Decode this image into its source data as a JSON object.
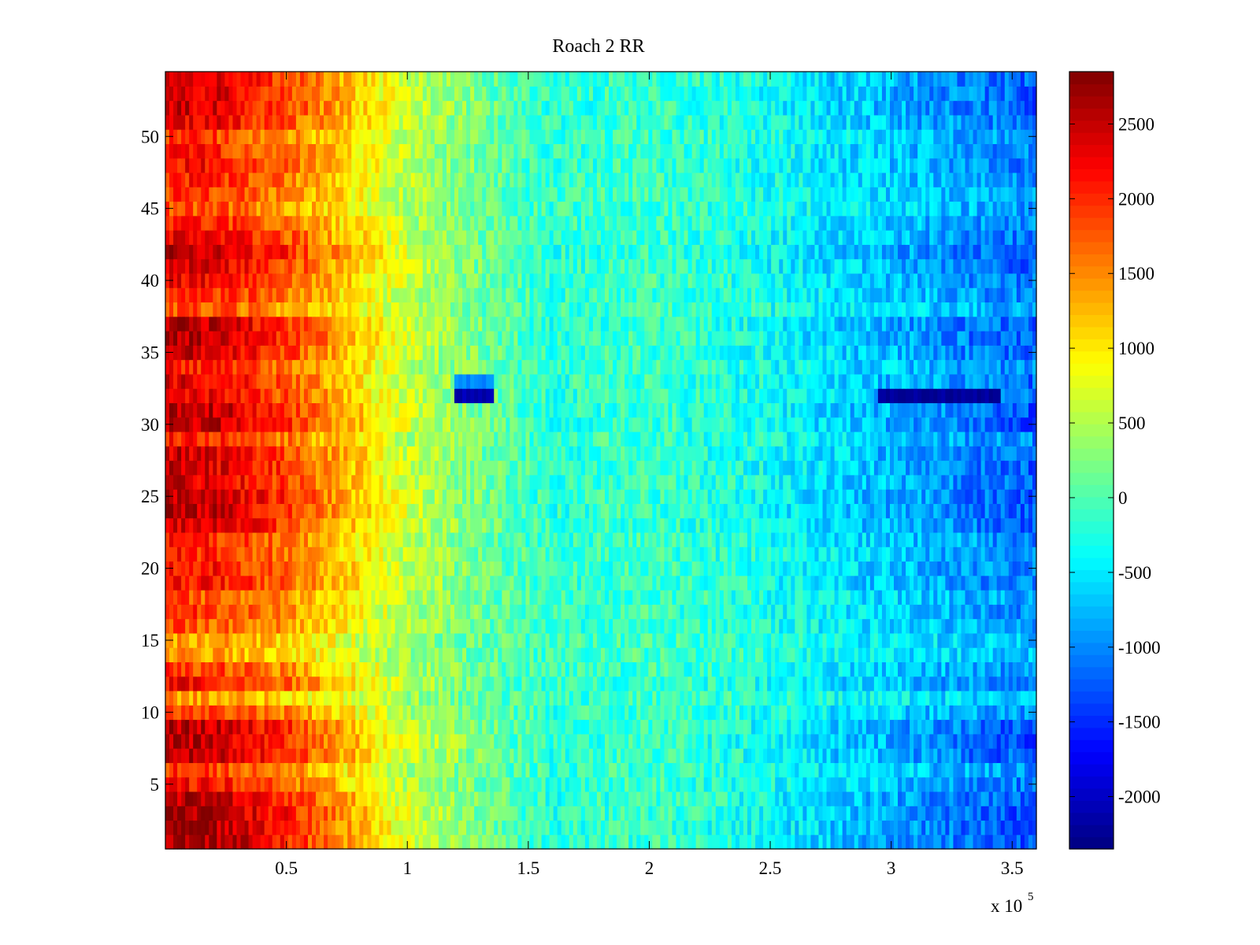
{
  "chart_data": {
    "type": "heatmap",
    "title": "Roach 2 RR",
    "xlabel": "",
    "ylabel": "",
    "x_multiplier_label": {
      "base": "x 10",
      "exponent": "5"
    },
    "xlim": [
      0,
      3.6
    ],
    "ylim": [
      0.5,
      54.5
    ],
    "x_ticks": [
      {
        "value": 0.5,
        "label": "0.5"
      },
      {
        "value": 1,
        "label": "1"
      },
      {
        "value": 1.5,
        "label": "1.5"
      },
      {
        "value": 2,
        "label": "2"
      },
      {
        "value": 2.5,
        "label": "2.5"
      },
      {
        "value": 3,
        "label": "3"
      },
      {
        "value": 3.5,
        "label": "3.5"
      }
    ],
    "y_ticks": [
      {
        "value": 5,
        "label": "5"
      },
      {
        "value": 10,
        "label": "10"
      },
      {
        "value": 15,
        "label": "15"
      },
      {
        "value": 20,
        "label": "20"
      },
      {
        "value": 25,
        "label": "25"
      },
      {
        "value": 30,
        "label": "30"
      },
      {
        "value": 35,
        "label": "35"
      },
      {
        "value": 40,
        "label": "40"
      },
      {
        "value": 45,
        "label": "45"
      },
      {
        "value": 50,
        "label": "50"
      }
    ],
    "colorbar": {
      "colormap": "jet",
      "range": [
        -2350,
        2850
      ],
      "ticks": [
        {
          "value": 2500,
          "label": "2500"
        },
        {
          "value": 2000,
          "label": "2000"
        },
        {
          "value": 1500,
          "label": "1500"
        },
        {
          "value": 1000,
          "label": "1000"
        },
        {
          "value": 500,
          "label": "500"
        },
        {
          "value": 0,
          "label": "0"
        },
        {
          "value": -500,
          "label": "-500"
        },
        {
          "value": -1000,
          "label": "-1000"
        },
        {
          "value": -1500,
          "label": "-1500"
        },
        {
          "value": -2000,
          "label": "-2000"
        }
      ]
    },
    "rows": 54,
    "columns_x_range": [
      0,
      3.6
    ],
    "profile_x": [
      0,
      0.2,
      0.5,
      0.8,
      1.0,
      1.3,
      1.6,
      2.0,
      2.4,
      2.8,
      3.1,
      3.4,
      3.6
    ],
    "profile_values": [
      2600,
      2500,
      2000,
      1200,
      650,
      200,
      -200,
      -100,
      -300,
      -650,
      -900,
      -1150,
      -1300
    ],
    "row_gains": [
      1.05,
      1.05,
      1.05,
      1.0,
      0.85,
      0.75,
      1.0,
      1.0,
      1.0,
      0.75,
      0.55,
      0.85,
      0.75,
      0.55,
      0.55,
      0.7,
      0.75,
      0.7,
      0.85,
      0.85,
      0.8,
      0.8,
      0.95,
      1.0,
      1.0,
      0.95,
      0.95,
      0.95,
      0.8,
      1.0,
      1.0,
      0.9,
      0.9,
      0.8,
      0.95,
      1.0,
      1.0,
      0.7,
      0.8,
      0.9,
      0.95,
      1.0,
      0.9,
      0.8,
      0.7,
      0.75,
      0.8,
      0.85,
      0.8,
      0.75,
      0.9,
      0.95,
      0.95,
      0.95
    ],
    "anomalies": [
      {
        "row": 32,
        "x_start": 1.2,
        "x_end": 1.35,
        "value": -2100
      },
      {
        "row": 32,
        "x_start": 2.95,
        "x_end": 3.45,
        "value": -2200
      },
      {
        "row": 33,
        "x_start": 1.2,
        "x_end": 1.35,
        "value": -1000
      }
    ],
    "grid": false,
    "legend": "colorbar-right"
  }
}
